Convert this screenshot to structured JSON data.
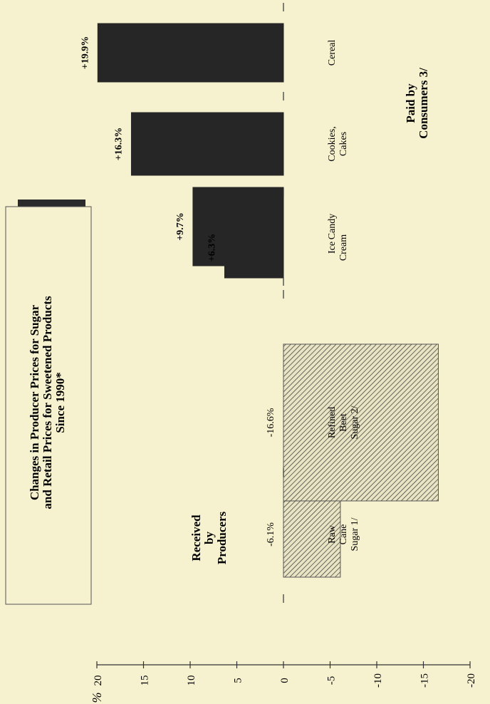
{
  "chart_data": {
    "type": "bar",
    "title": "Changes in Producer Prices for Sugar and Retail Prices for Sweetened Products Since 1990*",
    "title_lines": [
      "Changes in Producer Prices for Sugar",
      "and Retail Prices for Sweetened Products",
      "Since 1990*"
    ],
    "ylabel": "%",
    "ylim": [
      -20,
      20
    ],
    "yticks": [
      20,
      15,
      10,
      5,
      0,
      -5,
      -10,
      -15,
      -20
    ],
    "groups": [
      {
        "name": "Received by Producers",
        "label_lines": [
          "Received",
          "by",
          "Producers"
        ]
      },
      {
        "name": "Paid by Consumers 3/",
        "label_lines": [
          "Paid by",
          "Consumers 3/"
        ]
      }
    ],
    "categories": [
      "Raw Cane Sugar 1/",
      "Refined Beet Sugar 2/",
      "Ice Cream",
      "Candy",
      "Cookies, Cakes",
      "Cereal"
    ],
    "category_lines": [
      [
        "Raw",
        "Cane",
        "Sugar 1/"
      ],
      [
        "Refined",
        "Beet",
        "Sugar 2/"
      ],
      [
        "Ice",
        "Cream"
      ],
      [
        "Candy"
      ],
      [
        "Cookies,",
        "Cakes"
      ],
      [
        "Cereal"
      ]
    ],
    "values": [
      -6.1,
      -16.6,
      6.3,
      9.7,
      16.3,
      19.9
    ],
    "value_labels": [
      "-6.1%",
      "-16.6%",
      "+6.3%",
      "+9.7%",
      "+16.3%",
      "+19.9%"
    ],
    "group_of_bar": [
      0,
      0,
      1,
      1,
      1,
      1
    ],
    "colors": {
      "background": "#f6f1cf",
      "solid_bar": "#262626",
      "hatch_line": "#333333",
      "hatch_bg": "#e9e4c4",
      "title_box_shadow": "#2b2b2b"
    },
    "grid": false
  }
}
